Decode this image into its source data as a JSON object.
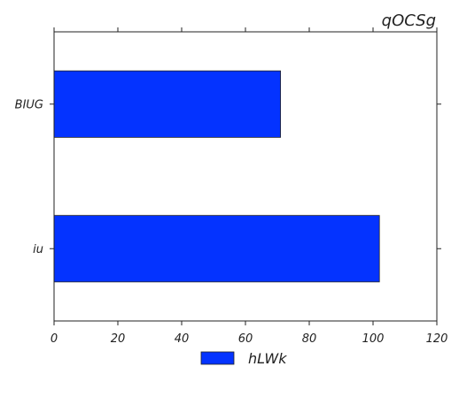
{
  "chart_data": {
    "type": "bar",
    "orientation": "horizontal",
    "title": "qOCSg",
    "xlabel": "",
    "ylabel": "",
    "categories": [
      "BIUG",
      "iu"
    ],
    "series": [
      {
        "name": "hLWk",
        "values": [
          71,
          102
        ],
        "color": "#0433ff"
      }
    ],
    "xlim": [
      0,
      120
    ],
    "x_ticks": [
      0,
      20,
      40,
      60,
      80,
      100,
      120
    ],
    "grid": false,
    "legend": "bottom-center"
  }
}
